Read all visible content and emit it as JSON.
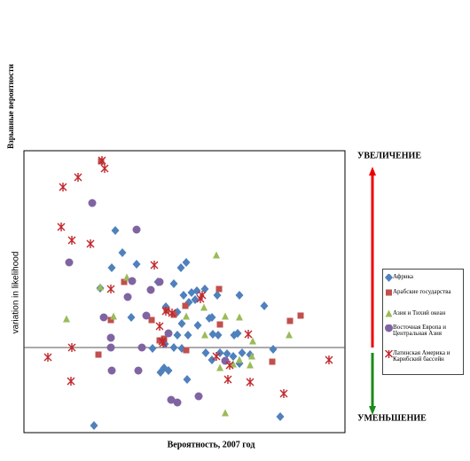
{
  "chart_data": {
    "type": "scatter",
    "y_title": "Взрывные вероятности",
    "y_label": "variation in likelihood",
    "x_label": "Вероятность, 2007 год",
    "increase_label": "УВЕЛИЧЕНИЕ",
    "decrease_label": "УМЕНЬШЕНИЕ",
    "xlim": [
      0,
      362
    ],
    "ylim": [
      -96,
      222
    ],
    "zero_line": 0,
    "series": [
      {
        "name": "Африка",
        "color": "#4f81bd",
        "marker": "diamond",
        "x": [
          103,
          111,
          99,
          127,
          177,
          183,
          86,
          169,
          151,
          121,
          180,
          189,
          195,
          204,
          160,
          173,
          186,
          193,
          218,
          243,
          271,
          212,
          178,
          185,
          173,
          196,
          159,
          169,
          145,
          178,
          213,
          219,
          237,
          241,
          205,
          221,
          229,
          236,
          212,
          243,
          255,
          281,
          158,
          163,
          154,
          184,
          79,
          289,
          246,
          209
        ],
        "values": [
          132,
          107,
          90,
          94,
          90,
          96,
          67,
          72,
          74,
          34,
          59,
          62,
          64,
          66,
          46,
          40,
          51,
          54,
          59,
          59,
          47,
          34,
          27,
          14,
          14,
          25,
          4,
          0,
          -1,
          -1,
          15,
          14,
          14,
          16,
          -6,
          -6,
          -7,
          -10,
          -14,
          -18,
          -8,
          -2,
          -23,
          -26,
          -28,
          -36,
          -88,
          -78,
          -6,
          33
        ]
      },
      {
        "name": "Арабские государства",
        "color": "#c0504d",
        "marker": "square",
        "x": [
          87,
          113,
          84,
          158,
          161,
          144,
          169,
          182,
          220,
          221,
          183,
          98,
          300,
          312,
          280,
          153
        ],
        "values": [
          210,
          74,
          -8,
          10,
          42,
          31,
          37,
          47,
          66,
          26,
          -3,
          31,
          30,
          36,
          -16,
          8
        ]
      },
      {
        "name": "Азия и Тихий океан",
        "color": "#9bbb59",
        "marker": "triangle",
        "x": [
          48,
          86,
          101,
          116,
          217,
          203,
          183,
          243,
          227,
          258,
          204,
          236,
          257,
          299,
          221,
          255,
          227,
          243
        ],
        "values": [
          32,
          68,
          35,
          79,
          104,
          45,
          35,
          34,
          35,
          7,
          14,
          -19,
          -10,
          14,
          -23,
          -20,
          -74,
          -14
        ]
      },
      {
        "name": "Восточная Европа и Центральная Азия",
        "color": "#8064a2",
        "marker": "circle",
        "x": [
          77,
          127,
          51,
          122,
          153,
          143,
          117,
          90,
          138,
          98,
          98,
          133,
          163,
          99,
          129,
          197,
          166,
          173,
          227
        ],
        "values": [
          163,
          133,
          96,
          75,
          74,
          65,
          57,
          34,
          36,
          11,
          0,
          0,
          16,
          -26,
          -26,
          -55,
          -59,
          -62,
          -15
        ]
      },
      {
        "name": "Латинская Америка и Карибский бассейн",
        "color": "#c0282d",
        "marker": "asterisk",
        "x": [
          44,
          61,
          88,
          91,
          42,
          54,
          75,
          147,
          98,
          160,
          167,
          201,
          153,
          199,
          156,
          54,
          27,
          157,
          253,
          217,
          232,
          255,
          230,
          53,
          293,
          344
        ],
        "values": [
          181,
          192,
          211,
          202,
          136,
          121,
          117,
          93,
          66,
          41,
          39,
          59,
          24,
          55,
          7,
          0,
          -11,
          5,
          15,
          -10,
          -20,
          -39,
          -36,
          -38,
          -52,
          -14
        ]
      }
    ]
  }
}
